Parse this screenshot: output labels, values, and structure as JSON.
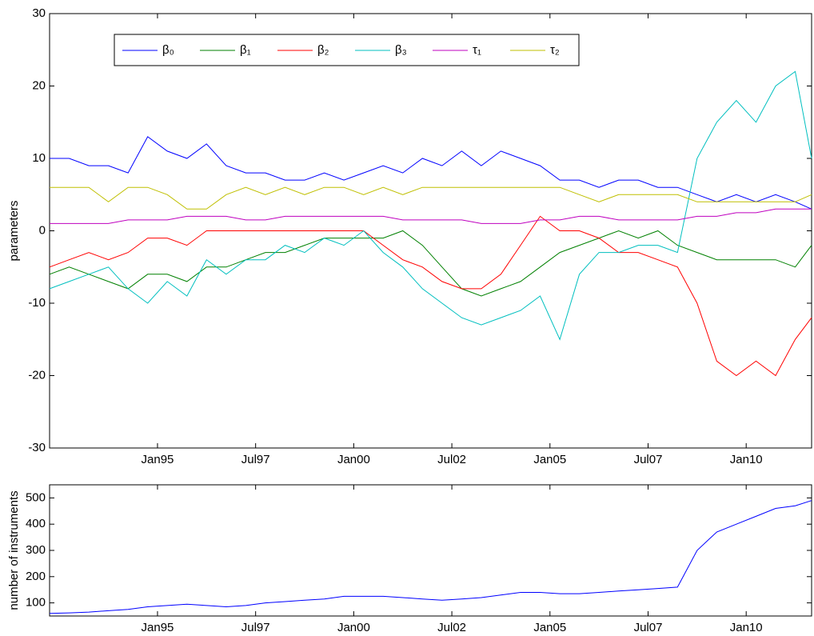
{
  "chart_data": [
    {
      "type": "line",
      "y_label": "parameters",
      "x": [
        "1992-04",
        "1992-10",
        "1993-04",
        "1993-10",
        "1994-04",
        "1994-10",
        "1995-04",
        "1995-10",
        "1996-04",
        "1996-10",
        "1997-04",
        "1997-10",
        "1998-04",
        "1998-10",
        "1999-04",
        "1999-10",
        "2000-04",
        "2000-10",
        "2001-04",
        "2001-10",
        "2002-04",
        "2002-10",
        "2003-04",
        "2003-10",
        "2004-04",
        "2004-10",
        "2005-04",
        "2005-10",
        "2006-04",
        "2006-10",
        "2007-04",
        "2007-10",
        "2008-04",
        "2008-10",
        "2009-04",
        "2009-10",
        "2010-04",
        "2010-10",
        "2011-04",
        "2011-09"
      ],
      "xlim": [
        "1992-04",
        "2011-09"
      ],
      "xticks": [
        {
          "value": "1995-01",
          "label": "Jan95"
        },
        {
          "value": "1997-07",
          "label": "Jul97"
        },
        {
          "value": "2000-01",
          "label": "Jan00"
        },
        {
          "value": "2002-07",
          "label": "Jul02"
        },
        {
          "value": "2005-01",
          "label": "Jan05"
        },
        {
          "value": "2007-07",
          "label": "Jul07"
        },
        {
          "value": "2010-01",
          "label": "Jan10"
        }
      ],
      "ylim": [
        -30,
        30
      ],
      "yticks": [
        -30,
        -20,
        -10,
        0,
        10,
        20,
        30
      ],
      "legend": "top-left",
      "series": [
        {
          "name": "β₀",
          "color": "#0000ff",
          "values": [
            10,
            10,
            9,
            9,
            8,
            13,
            11,
            10,
            12,
            9,
            8,
            8,
            7,
            7,
            8,
            7,
            8,
            9,
            8,
            10,
            9,
            11,
            9,
            11,
            10,
            9,
            7,
            7,
            6,
            7,
            7,
            6,
            6,
            5,
            4,
            5,
            4,
            5,
            4,
            3
          ]
        },
        {
          "name": "β₁",
          "color": "#008000",
          "values": [
            -6,
            -5,
            -6,
            -7,
            -8,
            -6,
            -6,
            -7,
            -5,
            -5,
            -4,
            -3,
            -3,
            -2,
            -1,
            -1,
            -1,
            -1,
            0,
            -2,
            -5,
            -8,
            -9,
            -8,
            -7,
            -5,
            -3,
            -2,
            -1,
            0,
            -1,
            0,
            -2,
            -3,
            -4,
            -4,
            -4,
            -4,
            -5,
            -2
          ]
        },
        {
          "name": "β₂",
          "color": "#ff0000",
          "values": [
            -5,
            -4,
            -3,
            -4,
            -3,
            -1,
            -1,
            -2,
            0,
            0,
            0,
            0,
            0,
            0,
            0,
            0,
            0,
            -2,
            -4,
            -5,
            -7,
            -8,
            -8,
            -6,
            -2,
            2,
            0,
            0,
            -1,
            -3,
            -3,
            -4,
            -5,
            -10,
            -18,
            -20,
            -18,
            -20,
            -15,
            -12
          ]
        },
        {
          "name": "β₃",
          "color": "#00bfbf",
          "values": [
            -8,
            -7,
            -6,
            -5,
            -8,
            -10,
            -7,
            -9,
            -4,
            -6,
            -4,
            -4,
            -2,
            -3,
            -1,
            -2,
            0,
            -3,
            -5,
            -8,
            -10,
            -12,
            -13,
            -12,
            -11,
            -9,
            -15,
            -6,
            -3,
            -3,
            -2,
            -2,
            -3,
            10,
            15,
            18,
            15,
            20,
            22,
            10
          ]
        },
        {
          "name": "τ₁",
          "color": "#bf00bf",
          "values": [
            1,
            1,
            1,
            1,
            1.5,
            1.5,
            1.5,
            2,
            2,
            2,
            1.5,
            1.5,
            2,
            2,
            2,
            2,
            2,
            2,
            1.5,
            1.5,
            1.5,
            1.5,
            1,
            1,
            1,
            1.5,
            1.5,
            2,
            2,
            1.5,
            1.5,
            1.5,
            1.5,
            2,
            2,
            2.5,
            2.5,
            3,
            3,
            3
          ]
        },
        {
          "name": "τ₂",
          "color": "#bfbf00",
          "values": [
            6,
            6,
            6,
            4,
            6,
            6,
            5,
            3,
            3,
            5,
            6,
            5,
            6,
            5,
            6,
            6,
            5,
            6,
            5,
            6,
            6,
            6,
            6,
            6,
            6,
            6,
            6,
            5,
            4,
            5,
            5,
            5,
            5,
            4,
            4,
            4,
            4,
            4,
            4,
            5
          ]
        }
      ]
    },
    {
      "type": "line",
      "y_label": "number of instruments",
      "x": [
        "1992-04",
        "1992-10",
        "1993-04",
        "1993-10",
        "1994-04",
        "1994-10",
        "1995-04",
        "1995-10",
        "1996-04",
        "1996-10",
        "1997-04",
        "1997-10",
        "1998-04",
        "1998-10",
        "1999-04",
        "1999-10",
        "2000-04",
        "2000-10",
        "2001-04",
        "2001-10",
        "2002-04",
        "2002-10",
        "2003-04",
        "2003-10",
        "2004-04",
        "2004-10",
        "2005-04",
        "2005-10",
        "2006-04",
        "2006-10",
        "2007-04",
        "2007-10",
        "2008-04",
        "2008-10",
        "2009-04",
        "2009-10",
        "2010-04",
        "2010-10",
        "2011-04",
        "2011-09"
      ],
      "xlim": [
        "1992-04",
        "2011-09"
      ],
      "xticks": [
        {
          "value": "1995-01",
          "label": "Jan95"
        },
        {
          "value": "1997-07",
          "label": "Jul97"
        },
        {
          "value": "2000-01",
          "label": "Jan00"
        },
        {
          "value": "2002-07",
          "label": "Jul02"
        },
        {
          "value": "2005-01",
          "label": "Jan05"
        },
        {
          "value": "2007-07",
          "label": "Jul07"
        },
        {
          "value": "2010-01",
          "label": "Jan10"
        }
      ],
      "ylim": [
        50,
        550
      ],
      "yticks": [
        100,
        200,
        300,
        400,
        500
      ],
      "series": [
        {
          "color": "#0000ff",
          "values": [
            60,
            62,
            65,
            70,
            75,
            85,
            90,
            95,
            90,
            85,
            90,
            100,
            105,
            110,
            115,
            125,
            125,
            125,
            120,
            115,
            110,
            115,
            120,
            130,
            140,
            140,
            135,
            135,
            140,
            145,
            150,
            155,
            160,
            300,
            370,
            400,
            430,
            460,
            470,
            490
          ]
        }
      ]
    }
  ]
}
